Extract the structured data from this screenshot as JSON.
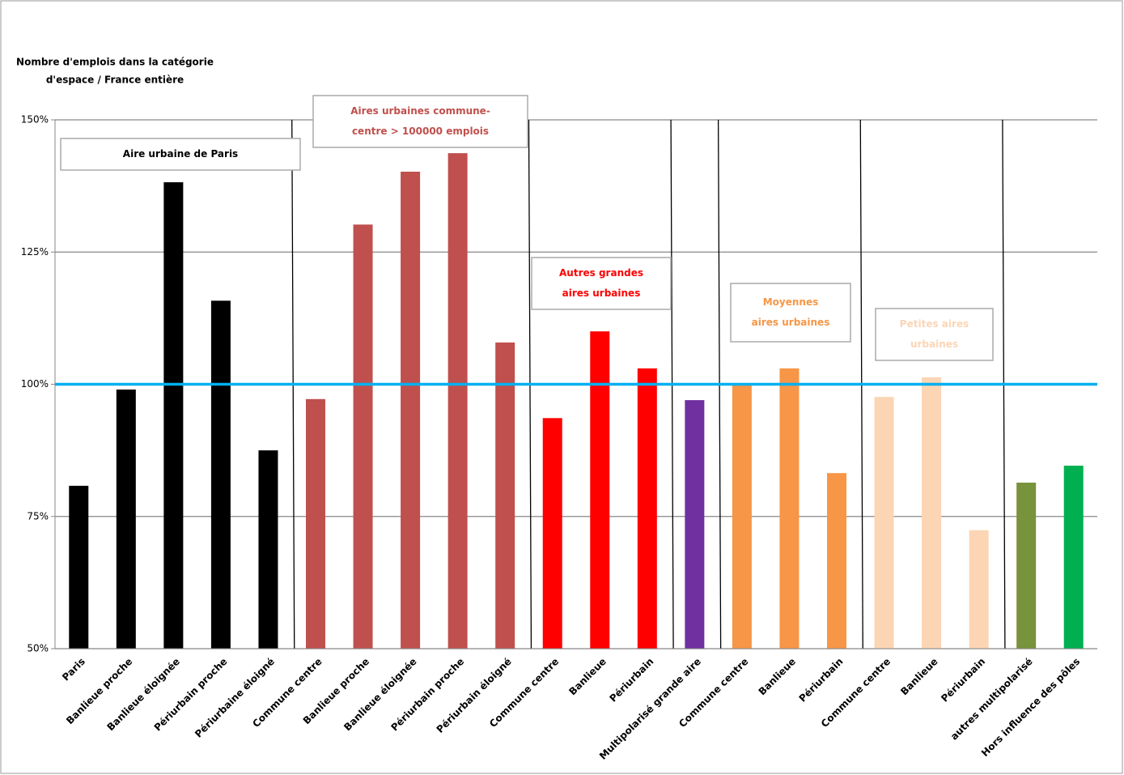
{
  "chart_data": {
    "type": "bar",
    "y_label": [
      "Nombre d'emplois dans la catégorie",
      "d'espace / France entière"
    ],
    "categories": [
      "Paris",
      "Banlieue proche",
      "Banlieue éloignée",
      "Périurbain proche",
      "Périurbaine éloigné",
      "Commune centre",
      "Banlieue proche",
      "Banlieue éloignée",
      "Périurbain proche",
      "Périurbain éloigné",
      "Commune centre",
      "Banlieue",
      "Périurbain",
      "Multipolarisé grande aire",
      "Commune centre",
      "Banlieue",
      "Périurbain",
      "Commune centre",
      "Banlieue",
      "Périurbain",
      "autres multipolarisé",
      "Hors influence des pôles"
    ],
    "values": [
      80.8,
      99,
      138.2,
      115.8,
      87.5,
      97.2,
      130.2,
      140.2,
      143.7,
      107.9,
      93.6,
      110,
      103,
      97,
      99.8,
      103,
      83.2,
      97.6,
      101.3,
      72.4,
      81.4,
      84.6
    ],
    "colors": [
      "#000000",
      "#000000",
      "#000000",
      "#000000",
      "#000000",
      "#c0504d",
      "#c0504d",
      "#c0504d",
      "#c0504d",
      "#c0504d",
      "#ff0000",
      "#ff0000",
      "#ff0000",
      "#7030a0",
      "#f79646",
      "#f79646",
      "#f79646",
      "#fcd5b4",
      "#fcd5b4",
      "#fcd5b4",
      "#77933c",
      "#00b050"
    ],
    "ylim": [
      50,
      150
    ],
    "yticks": [
      {
        "value": 50,
        "label": "50%"
      },
      {
        "value": 75,
        "label": "75%"
      },
      {
        "value": 100,
        "label": "100%"
      },
      {
        "value": 125,
        "label": "125%"
      },
      {
        "value": 150,
        "label": "150%"
      }
    ],
    "grid": true,
    "reference_line": 100,
    "reference_color": "#00b0f0",
    "annotations": [
      {
        "lines": [
          "Aire urbaine de Paris"
        ],
        "color": "#000000"
      },
      {
        "lines": [
          "Aires urbaines commune-",
          "centre > 100000 emplois"
        ],
        "color": "#c0504d"
      },
      {
        "lines": [
          "Autres grandes",
          "aires urbaines"
        ],
        "color": "#ff0000"
      },
      {
        "lines": [
          "Moyennes",
          "aires urbaines"
        ],
        "color": "#f79646"
      },
      {
        "lines": [
          "Petites aires",
          "urbaines"
        ],
        "color": "#fcd5b4"
      }
    ]
  }
}
